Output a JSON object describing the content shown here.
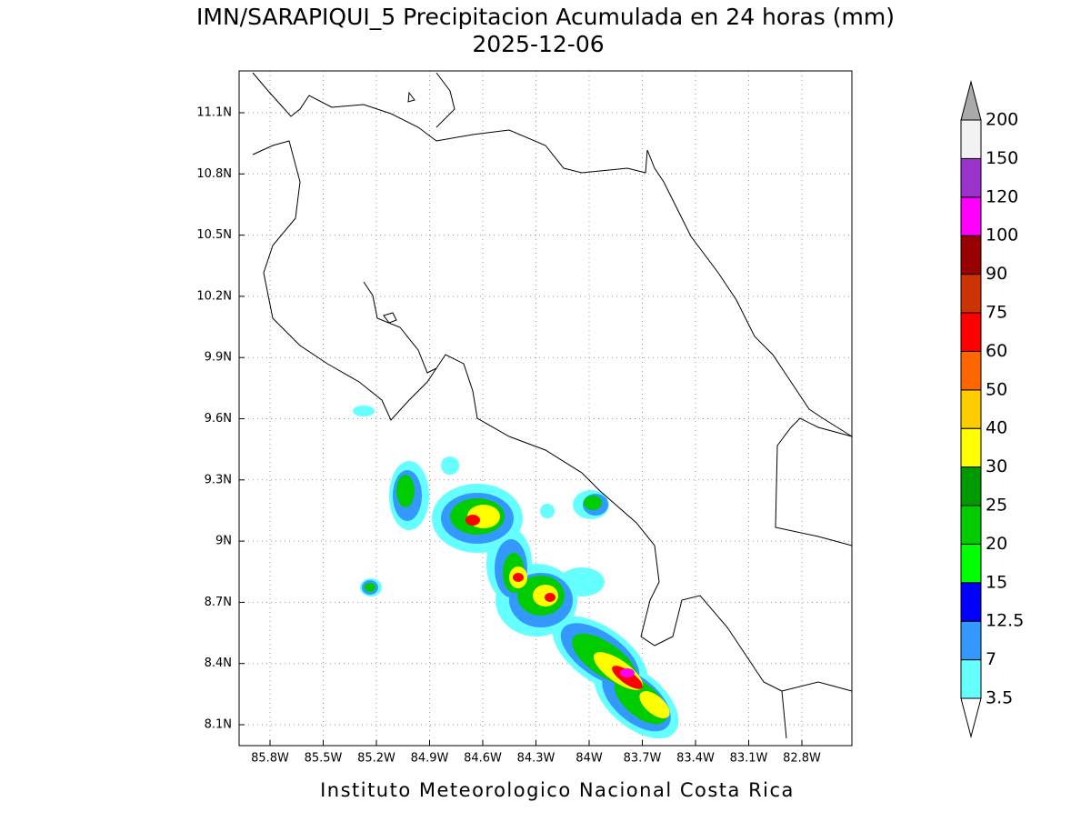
{
  "header": {
    "title": "IMN/SARAPIQUI_5 Precipitacion Acumulada en 24 horas (mm)",
    "subtitle": "2025-12-06"
  },
  "map": {
    "lat_ticks": [
      "11.1N",
      "10.8N",
      "10.5N",
      "10.2N",
      "9.9N",
      "9.6N",
      "9.3N",
      "9N",
      "8.7N",
      "8.4N",
      "8.1N"
    ],
    "lon_ticks": [
      "85.8W",
      "85.5W",
      "85.2W",
      "84.9W",
      "84.6W",
      "84.3W",
      "84W",
      "83.7W",
      "83.4W",
      "83.1W",
      "82.8W"
    ]
  },
  "colorbar": {
    "levels": [
      "3.5",
      "7",
      "12.5",
      "15",
      "20",
      "25",
      "30",
      "40",
      "50",
      "60",
      "75",
      "90",
      "100",
      "120",
      "150",
      "200"
    ],
    "colors": [
      "#66ffff",
      "#3399ff",
      "#0000ff",
      "#00ff00",
      "#00cc00",
      "#009900",
      "#ffff00",
      "#ffcc00",
      "#ff6600",
      "#ff0000",
      "#cc3300",
      "#990000",
      "#ff00ff",
      "#9933cc",
      "#f2f2f2"
    ],
    "under_color": "#ffffff",
    "over_color": "#aaaaaa"
  },
  "footer": "Instituto Meteorologico Nacional Costa Rica"
}
